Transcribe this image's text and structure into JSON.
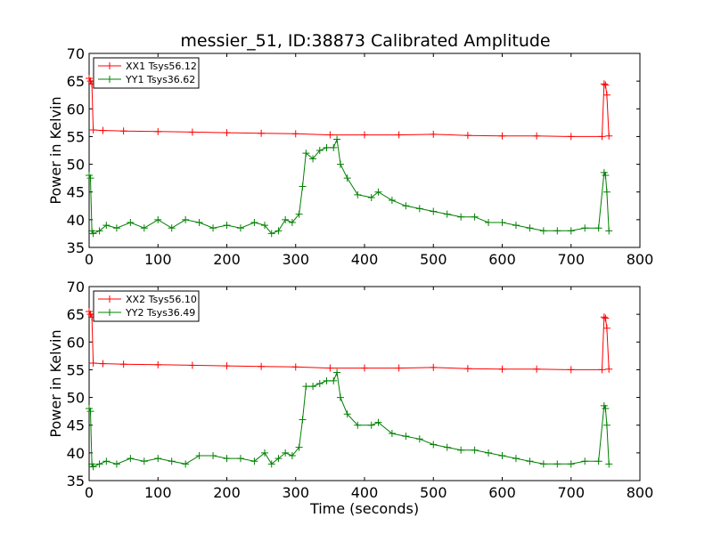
{
  "title": "messier_51, ID:38873 Calibrated Amplitude",
  "colors": {
    "xx": "#ff0000",
    "yy": "#008000"
  },
  "chart_data": [
    {
      "type": "line",
      "marker": "plus",
      "title": "messier_51, ID:38873 Calibrated Amplitude",
      "xlabel": "",
      "ylabel": "Power in Kelvin",
      "xlim": [
        0,
        800
      ],
      "ylim": [
        35,
        70
      ],
      "xticks": [
        0,
        100,
        200,
        300,
        400,
        500,
        600,
        700,
        800
      ],
      "yticks": [
        35,
        40,
        45,
        50,
        55,
        60,
        65,
        70
      ],
      "grid": false,
      "legend_position": "top-left",
      "series": [
        {
          "name": "XX1 Tsys56.12",
          "color": "#ff0000",
          "x": [
            0,
            2,
            4,
            6,
            20,
            50,
            100,
            150,
            200,
            250,
            300,
            350,
            400,
            450,
            500,
            550,
            600,
            650,
            700,
            745,
            748,
            750,
            752,
            755
          ],
          "y": [
            65.5,
            65,
            64.5,
            56.2,
            56.1,
            56.0,
            55.9,
            55.8,
            55.7,
            55.6,
            55.5,
            55.3,
            55.3,
            55.3,
            55.4,
            55.2,
            55.1,
            55.1,
            55.0,
            55.0,
            64.5,
            64.3,
            62.5,
            55.1
          ]
        },
        {
          "name": "YY1 Tsys36.62",
          "color": "#008000",
          "x": [
            0,
            2,
            4,
            6,
            15,
            25,
            40,
            60,
            80,
            100,
            120,
            140,
            160,
            180,
            200,
            220,
            240,
            255,
            265,
            275,
            285,
            295,
            305,
            310,
            315,
            325,
            335,
            345,
            355,
            360,
            365,
            375,
            390,
            410,
            420,
            440,
            460,
            480,
            500,
            520,
            540,
            560,
            580,
            600,
            620,
            640,
            660,
            680,
            700,
            720,
            740,
            748,
            750,
            752,
            755
          ],
          "y": [
            48,
            47.5,
            38,
            37.5,
            38,
            39,
            38.5,
            39.5,
            38.5,
            40,
            38.5,
            40,
            39.5,
            38.5,
            39,
            38.5,
            39.5,
            39,
            37.5,
            38,
            40,
            39.5,
            41,
            46,
            52,
            51,
            52.5,
            53,
            53,
            54.5,
            50,
            47.5,
            44.5,
            44,
            45,
            43.5,
            42.5,
            42,
            41.5,
            41,
            40.5,
            40.5,
            39.5,
            39.5,
            39,
            38.5,
            38,
            38,
            38,
            38.5,
            38.5,
            48.5,
            48,
            45,
            38
          ]
        }
      ]
    },
    {
      "type": "line",
      "marker": "plus",
      "title": "",
      "xlabel": "Time (seconds)",
      "ylabel": "Power in Kelvin",
      "xlim": [
        0,
        800
      ],
      "ylim": [
        35,
        70
      ],
      "xticks": [
        0,
        100,
        200,
        300,
        400,
        500,
        600,
        700,
        800
      ],
      "yticks": [
        35,
        40,
        45,
        50,
        55,
        60,
        65,
        70
      ],
      "grid": false,
      "legend_position": "top-left",
      "series": [
        {
          "name": "XX2 Tsys56.10",
          "color": "#ff0000",
          "x": [
            0,
            2,
            4,
            6,
            20,
            50,
            100,
            150,
            200,
            250,
            300,
            350,
            400,
            450,
            500,
            550,
            600,
            650,
            700,
            745,
            748,
            750,
            752,
            755
          ],
          "y": [
            65.5,
            65,
            64.5,
            56.2,
            56.1,
            56.0,
            55.9,
            55.8,
            55.7,
            55.6,
            55.5,
            55.3,
            55.3,
            55.3,
            55.4,
            55.2,
            55.1,
            55.1,
            55.0,
            55.0,
            64.5,
            64.3,
            62.5,
            55.1
          ]
        },
        {
          "name": "YY2 Tsys36.49",
          "color": "#008000",
          "x": [
            0,
            2,
            4,
            6,
            15,
            25,
            40,
            60,
            80,
            100,
            120,
            140,
            160,
            180,
            200,
            220,
            240,
            255,
            265,
            275,
            285,
            295,
            305,
            310,
            315,
            325,
            335,
            345,
            355,
            360,
            365,
            375,
            390,
            410,
            420,
            440,
            460,
            480,
            500,
            520,
            540,
            560,
            580,
            600,
            620,
            640,
            660,
            680,
            700,
            720,
            740,
            748,
            750,
            752,
            755
          ],
          "y": [
            48,
            47.5,
            38,
            37.5,
            38,
            38.5,
            38,
            39,
            38.5,
            39,
            38.5,
            38,
            39.5,
            39.5,
            39,
            39,
            38.5,
            40,
            38,
            39,
            40,
            39.5,
            41,
            46,
            52,
            52,
            52.5,
            53,
            53,
            54.5,
            50,
            47,
            45,
            45,
            45.5,
            43.5,
            43,
            42.5,
            41.5,
            41,
            40.5,
            40.5,
            40,
            39.5,
            39,
            38.5,
            38,
            38,
            38,
            38.5,
            38.5,
            48.5,
            48,
            45,
            38
          ]
        }
      ]
    }
  ]
}
